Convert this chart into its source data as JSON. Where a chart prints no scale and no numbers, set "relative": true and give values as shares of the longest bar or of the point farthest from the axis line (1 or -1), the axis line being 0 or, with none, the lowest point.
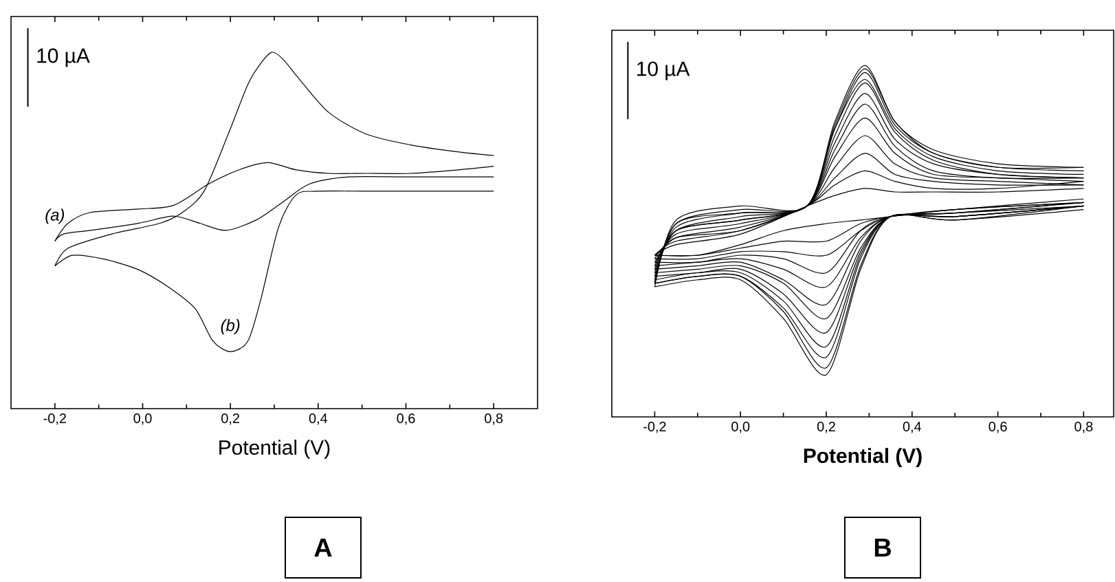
{
  "chart_data": [
    {
      "type": "line",
      "title": "A",
      "xlabel": "Potential (V)",
      "annotations": [
        "10 µA"
      ],
      "relative": true,
      "xlim": [
        -0.3,
        0.9
      ],
      "xticks": [
        {
          "value": -0.2,
          "label": "-0,2"
        },
        {
          "value": 0.0,
          "label": "0,0"
        },
        {
          "value": 0.2,
          "label": "0,2"
        },
        {
          "value": 0.4,
          "label": "0,4"
        },
        {
          "value": 0.6,
          "label": "0,6"
        },
        {
          "value": 0.8,
          "label": "0,8"
        }
      ],
      "series": [
        {
          "color": "#000000",
          "x": [
            -0.2,
            -0.17,
            -0.12,
            -0.01,
            0.07,
            0.15,
            0.22,
            0.285,
            0.35,
            0.425,
            0.51,
            0.61,
            0.72,
            0.8
          ],
          "values": [
            0.47,
            0.52,
            0.55,
            0.56,
            0.57,
            0.63,
            0.67,
            0.69,
            0.67,
            0.66,
            0.66,
            0.66,
            0.67,
            0.68
          ]
        },
        {
          "name": "(a)",
          "color": "#000000",
          "x": [
            -0.2,
            -0.18,
            -0.12,
            -0.01,
            0.07,
            0.13,
            0.19,
            0.26,
            0.32,
            0.38,
            0.47,
            0.61,
            0.8
          ],
          "values": [
            0.47,
            0.49,
            0.5,
            0.52,
            0.54,
            0.52,
            0.5,
            0.53,
            0.58,
            0.63,
            0.65,
            0.65,
            0.65
          ]
        },
        {
          "color": "#000000",
          "x": [
            -0.2,
            -0.17,
            -0.07,
            0.04,
            0.09,
            0.14,
            0.195,
            0.24,
            0.27,
            0.295,
            0.32,
            0.36,
            0.425,
            0.51,
            0.61,
            0.72,
            0.8
          ],
          "values": [
            0.4,
            0.45,
            0.49,
            0.52,
            0.55,
            0.61,
            0.77,
            0.91,
            0.97,
            1.0,
            0.98,
            0.92,
            0.83,
            0.77,
            0.74,
            0.72,
            0.71
          ]
        },
        {
          "name": "(b)",
          "color": "#000000",
          "x": [
            -0.2,
            -0.16,
            -0.09,
            -0.01,
            0.06,
            0.12,
            0.16,
            0.2,
            0.24,
            0.27,
            0.31,
            0.35,
            0.4,
            0.51,
            0.72,
            0.8
          ],
          "values": [
            0.4,
            0.43,
            0.42,
            0.39,
            0.34,
            0.28,
            0.19,
            0.16,
            0.19,
            0.31,
            0.51,
            0.6,
            0.61,
            0.61,
            0.61,
            0.61
          ]
        }
      ]
    },
    {
      "type": "line",
      "title": "B",
      "xlabel": "Potential (V)",
      "annotations": [
        "10 µA"
      ],
      "relative": true,
      "xlim": [
        -0.3,
        0.87
      ],
      "xticks": [
        {
          "value": -0.2,
          "label": "-0,2"
        },
        {
          "value": 0.0,
          "label": "0,0"
        },
        {
          "value": 0.2,
          "label": "0,2"
        },
        {
          "value": 0.4,
          "label": "0,4"
        },
        {
          "value": 0.6,
          "label": "0,6"
        },
        {
          "value": 0.8,
          "label": "0,8"
        }
      ],
      "series": [
        {
          "color": "#000000",
          "x": [
            -0.2,
            -0.15,
            0.0,
            0.155,
            0.22,
            0.29,
            0.36,
            0.45,
            0.6,
            0.8
          ],
          "values": [
            0.46,
            0.49,
            0.52,
            0.6,
            0.63,
            0.65,
            0.64,
            0.64,
            0.64,
            0.65
          ]
        },
        {
          "color": "#000000",
          "x": [
            -0.2,
            -0.1,
            0.0,
            0.1,
            0.2,
            0.28,
            0.35,
            0.5,
            0.8
          ],
          "values": [
            0.46,
            0.46,
            0.49,
            0.53,
            0.55,
            0.56,
            0.57,
            0.59,
            0.61
          ]
        },
        {
          "color": "#000000",
          "x": [
            -0.2,
            -0.15,
            0.0,
            0.155,
            0.22,
            0.29,
            0.36,
            0.45,
            0.6,
            0.8
          ],
          "values": [
            0.46,
            0.5,
            0.53,
            0.6,
            0.66,
            0.7,
            0.67,
            0.65,
            0.65,
            0.67
          ]
        },
        {
          "color": "#000000",
          "x": [
            -0.2,
            -0.1,
            0.0,
            0.1,
            0.2,
            0.28,
            0.35,
            0.5,
            0.8
          ],
          "values": [
            0.46,
            0.46,
            0.48,
            0.5,
            0.5,
            0.55,
            0.57,
            0.59,
            0.62
          ]
        },
        {
          "color": "#000000",
          "x": [
            -0.2,
            -0.15,
            0.0,
            0.155,
            0.22,
            0.29,
            0.36,
            0.45,
            0.6,
            0.8
          ],
          "values": [
            0.45,
            0.51,
            0.53,
            0.6,
            0.68,
            0.75,
            0.69,
            0.67,
            0.66,
            0.66
          ]
        },
        {
          "color": "#000000",
          "x": [
            -0.2,
            -0.1,
            0.0,
            0.1,
            0.2,
            0.28,
            0.35,
            0.5,
            0.8
          ],
          "values": [
            0.45,
            0.45,
            0.47,
            0.47,
            0.46,
            0.53,
            0.57,
            0.59,
            0.61
          ]
        },
        {
          "color": "#000000",
          "x": [
            -0.2,
            -0.15,
            0.0,
            0.155,
            0.22,
            0.29,
            0.36,
            0.45,
            0.6,
            0.8
          ],
          "values": [
            0.44,
            0.51,
            0.54,
            0.6,
            0.71,
            0.8,
            0.72,
            0.68,
            0.67,
            0.66
          ]
        },
        {
          "color": "#000000",
          "x": [
            -0.2,
            -0.1,
            0.0,
            0.1,
            0.2,
            0.28,
            0.35,
            0.5,
            0.8
          ],
          "values": [
            0.44,
            0.44,
            0.46,
            0.45,
            0.41,
            0.53,
            0.57,
            0.58,
            0.61
          ]
        },
        {
          "color": "#000000",
          "x": [
            -0.2,
            -0.15,
            0.0,
            0.155,
            0.22,
            0.29,
            0.36,
            0.45,
            0.6,
            0.8
          ],
          "values": [
            0.43,
            0.52,
            0.55,
            0.6,
            0.74,
            0.85,
            0.75,
            0.69,
            0.68,
            0.67
          ]
        },
        {
          "color": "#000000",
          "x": [
            -0.2,
            -0.1,
            0.0,
            0.1,
            0.2,
            0.28,
            0.35,
            0.5,
            0.8
          ],
          "values": [
            0.43,
            0.44,
            0.45,
            0.42,
            0.37,
            0.51,
            0.57,
            0.58,
            0.61
          ]
        },
        {
          "color": "#000000",
          "x": [
            -0.2,
            -0.15,
            0.0,
            0.155,
            0.22,
            0.29,
            0.36,
            0.45,
            0.6,
            0.8
          ],
          "values": [
            0.42,
            0.53,
            0.56,
            0.6,
            0.76,
            0.89,
            0.77,
            0.7,
            0.68,
            0.68
          ]
        },
        {
          "color": "#000000",
          "x": [
            -0.2,
            -0.1,
            0.0,
            0.1,
            0.2,
            0.28,
            0.35,
            0.5,
            0.8
          ],
          "values": [
            0.42,
            0.43,
            0.44,
            0.39,
            0.32,
            0.5,
            0.57,
            0.58,
            0.6
          ]
        },
        {
          "color": "#000000",
          "x": [
            -0.2,
            -0.15,
            0.0,
            0.155,
            0.22,
            0.29,
            0.36,
            0.45,
            0.6,
            0.8
          ],
          "values": [
            0.41,
            0.53,
            0.56,
            0.6,
            0.78,
            0.92,
            0.79,
            0.72,
            0.69,
            0.68
          ]
        },
        {
          "color": "#000000",
          "x": [
            -0.2,
            -0.1,
            0.0,
            0.1,
            0.2,
            0.28,
            0.35,
            0.5,
            0.8
          ],
          "values": [
            0.41,
            0.42,
            0.43,
            0.38,
            0.28,
            0.48,
            0.57,
            0.57,
            0.6
          ]
        },
        {
          "color": "#000000",
          "x": [
            -0.2,
            -0.15,
            0.0,
            0.155,
            0.22,
            0.29,
            0.36,
            0.45,
            0.6,
            0.8
          ],
          "values": [
            0.4,
            0.53,
            0.57,
            0.6,
            0.8,
            0.95,
            0.81,
            0.73,
            0.69,
            0.68
          ]
        },
        {
          "color": "#000000",
          "x": [
            -0.2,
            -0.1,
            0.0,
            0.1,
            0.2,
            0.28,
            0.35,
            0.5,
            0.8
          ],
          "values": [
            0.4,
            0.41,
            0.42,
            0.35,
            0.24,
            0.47,
            0.57,
            0.57,
            0.6
          ]
        },
        {
          "color": "#000000",
          "x": [
            -0.2,
            -0.15,
            0.0,
            0.155,
            0.22,
            0.29,
            0.36,
            0.45,
            0.6,
            0.8
          ],
          "values": [
            0.39,
            0.54,
            0.58,
            0.6,
            0.82,
            0.96,
            0.82,
            0.74,
            0.7,
            0.69
          ]
        },
        {
          "color": "#000000",
          "x": [
            -0.2,
            -0.1,
            0.0,
            0.1,
            0.2,
            0.28,
            0.35,
            0.5,
            0.8
          ],
          "values": [
            0.39,
            0.41,
            0.41,
            0.33,
            0.2,
            0.46,
            0.57,
            0.57,
            0.6
          ]
        },
        {
          "color": "#000000",
          "x": [
            -0.2,
            -0.15,
            0.0,
            0.155,
            0.22,
            0.29,
            0.36,
            0.45,
            0.6,
            0.8
          ],
          "values": [
            0.38,
            0.55,
            0.58,
            0.6,
            0.82,
            0.98,
            0.83,
            0.75,
            0.71,
            0.7
          ]
        },
        {
          "color": "#000000",
          "x": [
            -0.2,
            -0.1,
            0.0,
            0.1,
            0.2,
            0.28,
            0.35,
            0.5,
            0.8
          ],
          "values": [
            0.38,
            0.4,
            0.4,
            0.31,
            0.17,
            0.45,
            0.57,
            0.57,
            0.6
          ]
        },
        {
          "color": "#000000",
          "x": [
            -0.2,
            -0.15,
            0.0,
            0.155,
            0.22,
            0.29,
            0.36,
            0.45,
            0.6,
            0.8
          ],
          "values": [
            0.38,
            0.55,
            0.59,
            0.6,
            0.83,
            0.99,
            0.84,
            0.75,
            0.71,
            0.71
          ]
        },
        {
          "color": "#000000",
          "x": [
            -0.2,
            -0.1,
            0.0,
            0.1,
            0.2,
            0.28,
            0.35,
            0.5,
            0.8
          ],
          "values": [
            0.38,
            0.4,
            0.4,
            0.3,
            0.14,
            0.43,
            0.57,
            0.56,
            0.59
          ]
        },
        {
          "color": "#000000",
          "x": [
            -0.2,
            -0.15,
            0.0,
            0.155,
            0.22,
            0.29,
            0.36,
            0.45,
            0.6,
            0.8
          ],
          "values": [
            0.37,
            0.56,
            0.6,
            0.6,
            0.84,
            1.0,
            0.84,
            0.76,
            0.72,
            0.71
          ]
        },
        {
          "color": "#000000",
          "x": [
            -0.2,
            -0.1,
            0.0,
            0.1,
            0.2,
            0.28,
            0.35,
            0.5,
            0.8
          ],
          "values": [
            0.37,
            0.39,
            0.39,
            0.28,
            0.12,
            0.42,
            0.57,
            0.56,
            0.6
          ]
        }
      ]
    }
  ]
}
